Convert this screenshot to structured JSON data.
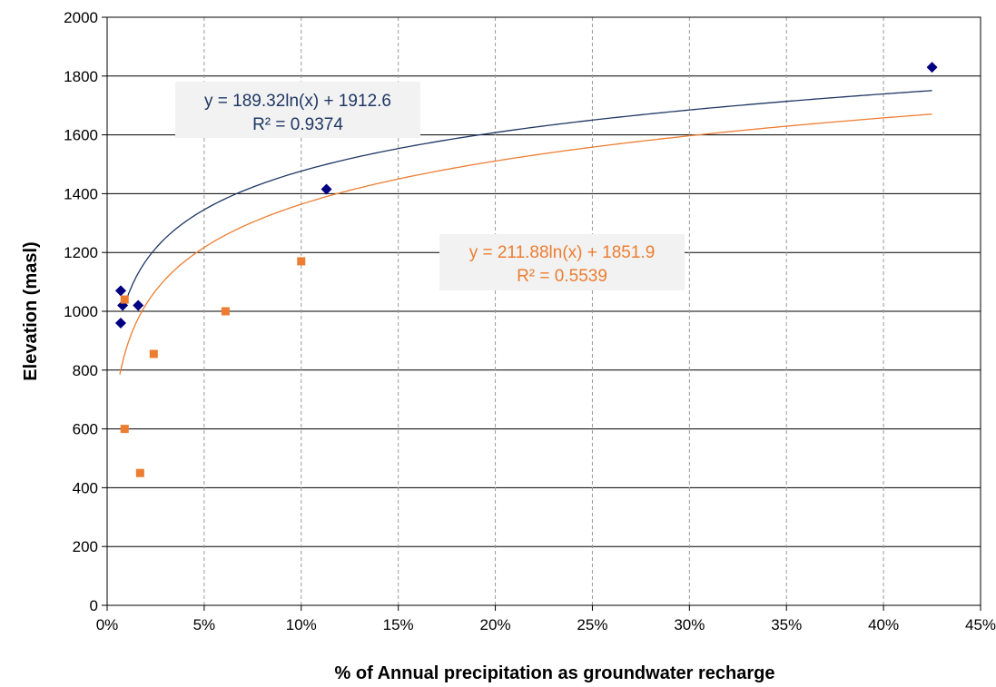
{
  "chart_data": {
    "type": "scatter",
    "title": "",
    "xlabel": "% of Annual precipitation as groundwater recharge",
    "ylabel": "Elevation (masl)",
    "xlim": [
      0,
      0.45
    ],
    "ylim": [
      0,
      2000
    ],
    "x_tick_labels": [
      "0%",
      "5%",
      "10%",
      "15%",
      "20%",
      "25%",
      "30%",
      "35%",
      "40%",
      "45%"
    ],
    "y_tick_labels": [
      "0",
      "200",
      "400",
      "600",
      "800",
      "1000",
      "1200",
      "1400",
      "1600",
      "1800",
      "2000"
    ],
    "grid": {
      "horizontal": "solid",
      "vertical": "dashed"
    },
    "series": [
      {
        "color": "#000080",
        "marker": "diamond",
        "points": [
          {
            "x": 0.007,
            "y": 1070
          },
          {
            "x": 0.008,
            "y": 1020
          },
          {
            "x": 0.007,
            "y": 960
          },
          {
            "x": 0.016,
            "y": 1020
          },
          {
            "x": 0.113,
            "y": 1415
          },
          {
            "x": 0.425,
            "y": 1830
          }
        ],
        "trendline": {
          "type": "log",
          "a": 189.32,
          "b": 1912.6,
          "x_range": [
            0.009,
            0.425
          ],
          "label_line1": "y = 189.32ln(x) + 1912.6",
          "label_line2": "R² = 0.9374",
          "color": "#1f3864"
        }
      },
      {
        "color": "#ed7d31",
        "marker": "square",
        "points": [
          {
            "x": 0.009,
            "y": 1040
          },
          {
            "x": 0.009,
            "y": 600
          },
          {
            "x": 0.017,
            "y": 450
          },
          {
            "x": 0.024,
            "y": 855
          },
          {
            "x": 0.061,
            "y": 1000
          },
          {
            "x": 0.1,
            "y": 1170
          }
        ],
        "trendline": {
          "type": "log",
          "a": 211.88,
          "b": 1851.9,
          "x_range": [
            0.0065,
            0.425
          ],
          "label_line1": "y = 211.88ln(x) + 1851.9",
          "label_line2": "R² = 0.5539",
          "color": "#ed7d31"
        }
      }
    ]
  }
}
